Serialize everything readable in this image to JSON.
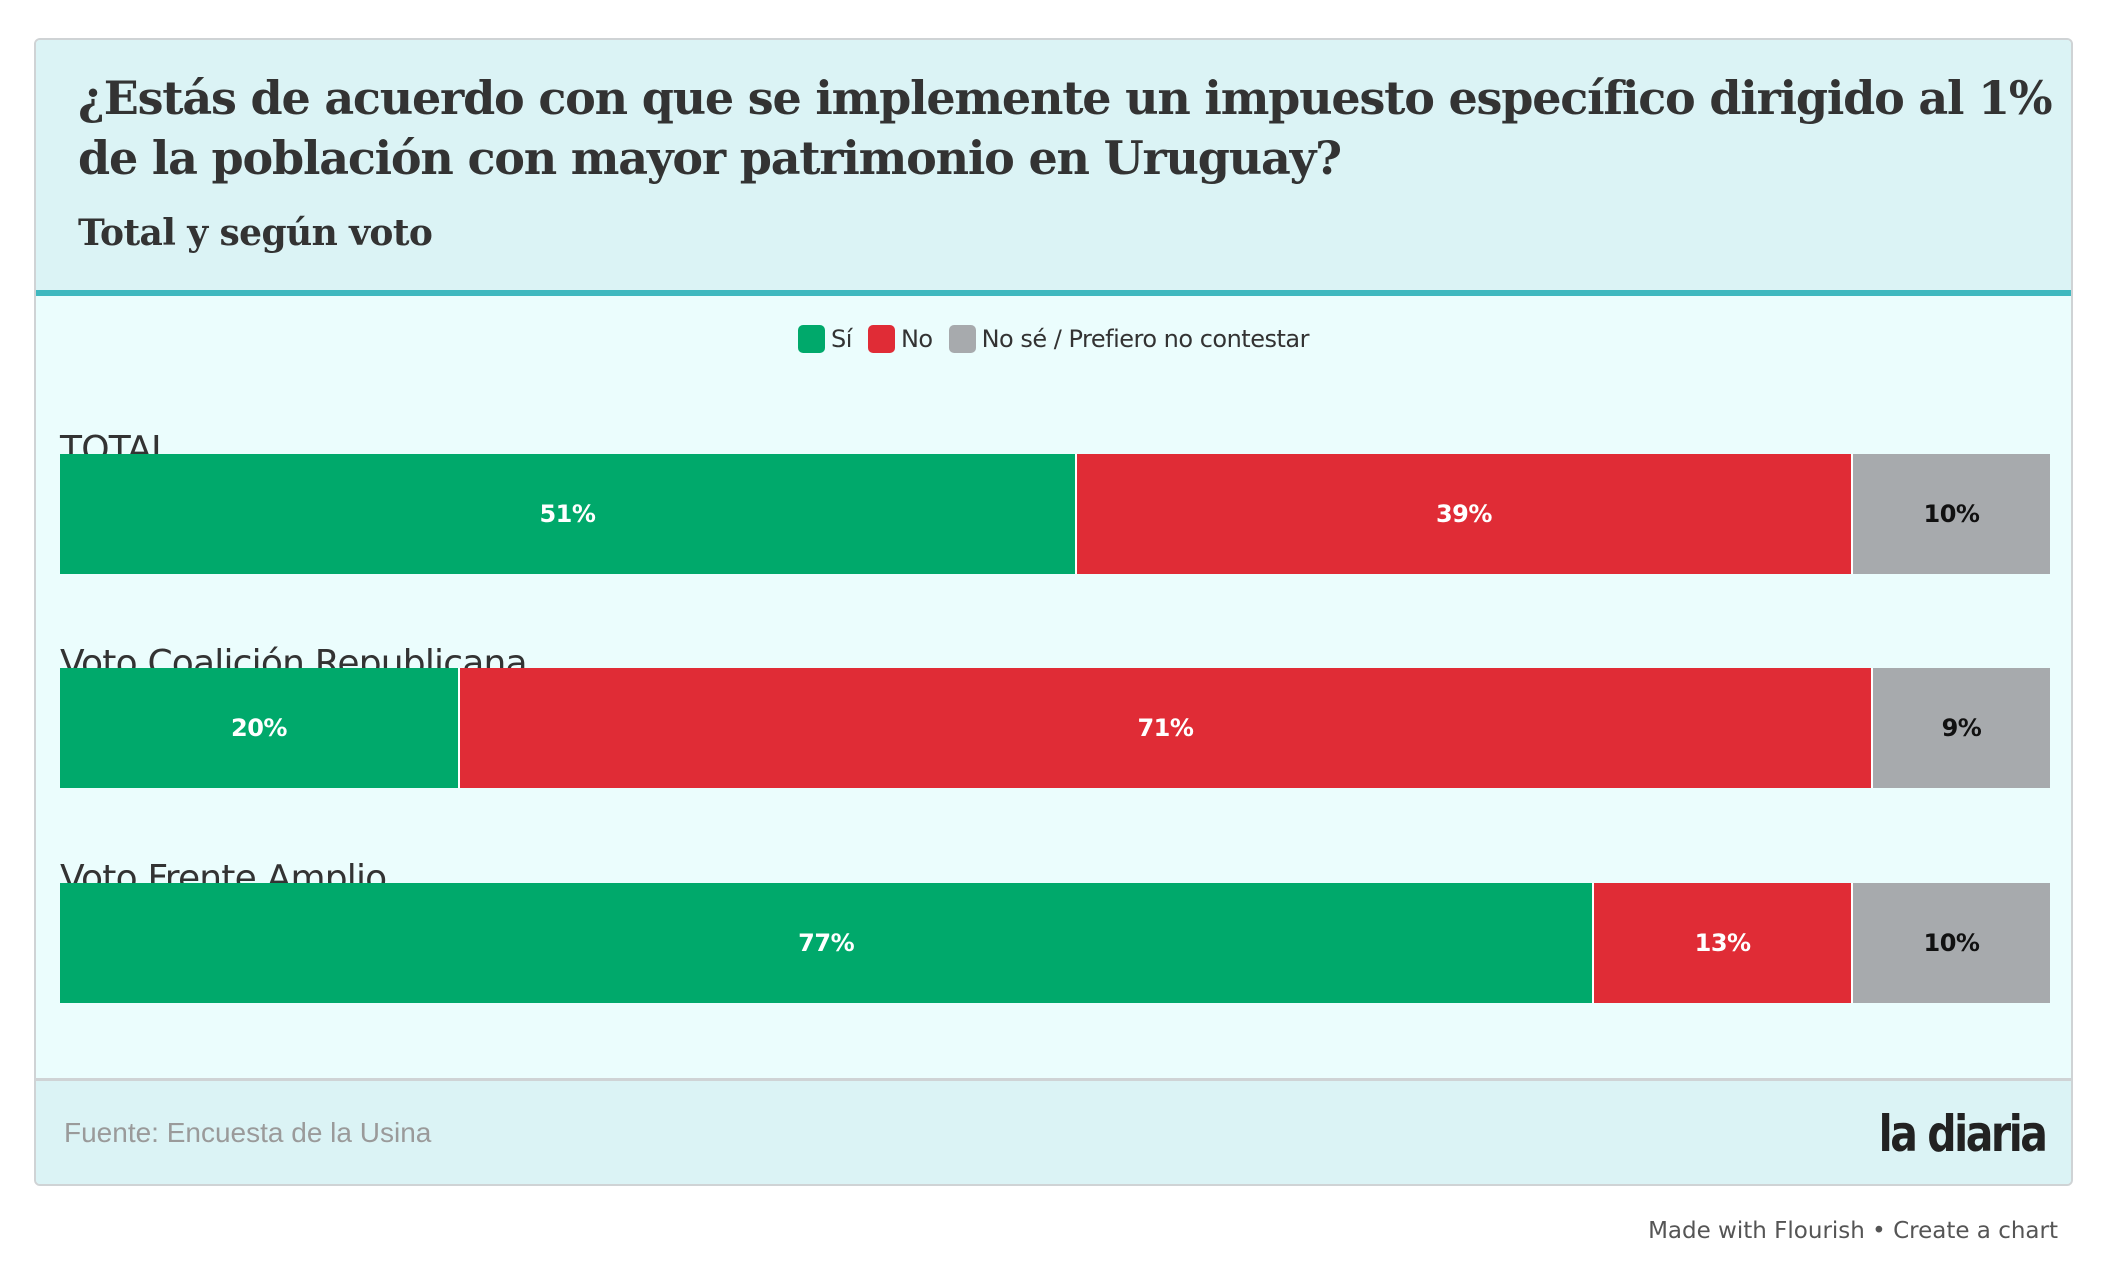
{
  "header": {
    "title": "¿Estás de acuerdo con que se implemente un impuesto específico dirigido al 1% de la población con mayor patrimonio en Uruguay?",
    "subtitle": "Total y según voto"
  },
  "colors": {
    "si": "#00a96b",
    "no": "#e02c36",
    "ns": "#a7aaad",
    "header_bg": "#dbf3f5",
    "body_bg": "#ebfdfd",
    "accent_line": "#3fb8bf"
  },
  "legend": [
    {
      "label": "Sí",
      "color": "#00a96b"
    },
    {
      "label": "No",
      "color": "#e02c36"
    },
    {
      "label": "No sé / Prefiero no contestar",
      "color": "#a7aaad"
    }
  ],
  "chart_data": {
    "type": "bar",
    "orientation": "horizontal-stacked-100",
    "title": "¿Estás de acuerdo con que se implemente un impuesto específico dirigido al 1% de la población con mayor patrimonio en Uruguay?",
    "subtitle": "Total y según voto",
    "categories": [
      "TOTAL",
      "Voto Coalición Republicana",
      "Voto Frente Amplio"
    ],
    "series": [
      {
        "name": "Sí",
        "color": "#00a96b",
        "values": [
          51,
          20,
          77
        ]
      },
      {
        "name": "No",
        "color": "#e02c36",
        "values": [
          39,
          71,
          13
        ]
      },
      {
        "name": "No sé / Prefiero no contestar",
        "color": "#a7aaad",
        "values": [
          10,
          9,
          10
        ]
      }
    ],
    "value_suffix": "%",
    "xlim": [
      0,
      100
    ],
    "legend_position": "top-center",
    "grid": false
  },
  "footer": {
    "source": "Fuente: Encuesta de la Usina",
    "logo": "la diaria"
  },
  "credit": {
    "made_with": "Made with Flourish",
    "separator": " • ",
    "create": "Create a chart"
  }
}
